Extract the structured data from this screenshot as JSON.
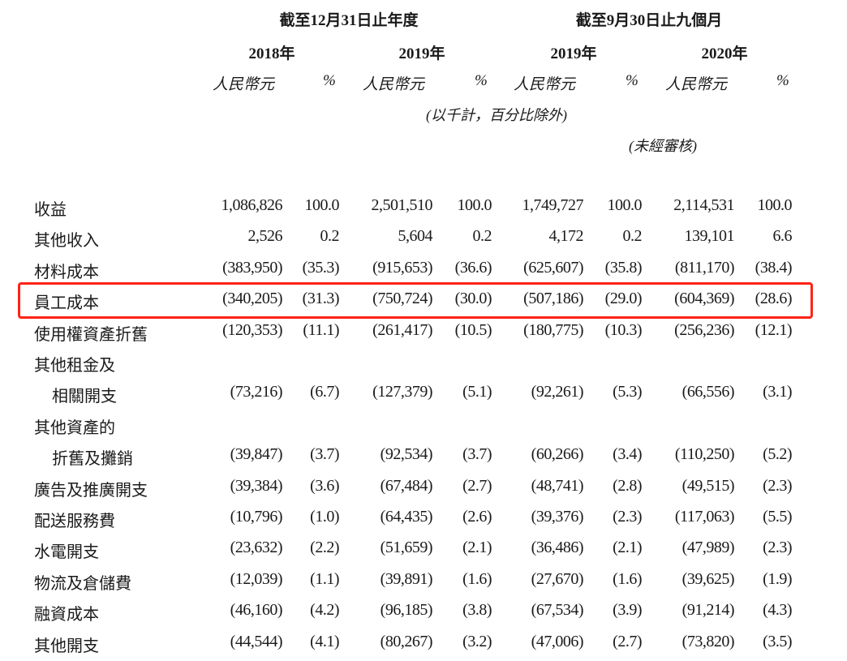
{
  "header": {
    "group1": "截至12月31日止年度",
    "group2": "截至9月30日止九個月",
    "years": [
      "2018年",
      "2019年",
      "2019年",
      "2020年"
    ],
    "currency": "人民幣元",
    "percent": "%",
    "note_units": "(以千計，百分比除外)",
    "note_unaudited": "(未經審核)"
  },
  "highlight_color": "#ff2318",
  "rows": [
    {
      "label": "收益",
      "values": [
        "1,086,826",
        "100.0",
        "2,501,510",
        "100.0",
        "1,749,727",
        "100.0",
        "2,114,531",
        "100.0"
      ]
    },
    {
      "label": "其他收入",
      "values": [
        "2,526",
        "0.2",
        "5,604",
        "0.2",
        "4,172",
        "0.2",
        "139,101",
        "6.6"
      ]
    },
    {
      "label": "材料成本",
      "values": [
        "(383,950)",
        "(35.3)",
        "(915,653)",
        "(36.6)",
        "(625,607)",
        "(35.8)",
        "(811,170)",
        "(38.4)"
      ]
    },
    {
      "label": "員工成本",
      "highlighted": true,
      "values": [
        "(340,205)",
        "(31.3)",
        "(750,724)",
        "(30.0)",
        "(507,186)",
        "(29.0)",
        "(604,369)",
        "(28.6)"
      ]
    },
    {
      "label": "使用權資產折舊",
      "values": [
        "(120,353)",
        "(11.1)",
        "(261,417)",
        "(10.5)",
        "(180,775)",
        "(10.3)",
        "(256,236)",
        "(12.1)"
      ]
    },
    {
      "label": "其他租金及",
      "values": []
    },
    {
      "label": "相關開支",
      "indent": true,
      "values": [
        "(73,216)",
        "(6.7)",
        "(127,379)",
        "(5.1)",
        "(92,261)",
        "(5.3)",
        "(66,556)",
        "(3.1)"
      ]
    },
    {
      "label": "其他資產的",
      "values": []
    },
    {
      "label": "折舊及攤銷",
      "indent": true,
      "values": [
        "(39,847)",
        "(3.7)",
        "(92,534)",
        "(3.7)",
        "(60,266)",
        "(3.4)",
        "(110,250)",
        "(5.2)"
      ]
    },
    {
      "label": "廣告及推廣開支",
      "values": [
        "(39,384)",
        "(3.6)",
        "(67,484)",
        "(2.7)",
        "(48,741)",
        "(2.8)",
        "(49,515)",
        "(2.3)"
      ]
    },
    {
      "label": "配送服務費",
      "values": [
        "(10,796)",
        "(1.0)",
        "(64,435)",
        "(2.6)",
        "(39,376)",
        "(2.3)",
        "(117,063)",
        "(5.5)"
      ]
    },
    {
      "label": "水電開支",
      "values": [
        "(23,632)",
        "(2.2)",
        "(51,659)",
        "(2.1)",
        "(36,486)",
        "(2.1)",
        "(47,989)",
        "(2.3)"
      ]
    },
    {
      "label": "物流及倉儲費",
      "values": [
        "(12,039)",
        "(1.1)",
        "(39,891)",
        "(1.6)",
        "(27,670)",
        "(1.6)",
        "(39,625)",
        "(1.9)"
      ]
    },
    {
      "label": "融資成本",
      "values": [
        "(46,160)",
        "(4.2)",
        "(96,185)",
        "(3.8)",
        "(67,534)",
        "(3.9)",
        "(91,214)",
        "(4.3)"
      ]
    },
    {
      "label": "其他開支",
      "values": [
        "(44,544)",
        "(4.1)",
        "(80,267)",
        "(3.2)",
        "(47,006)",
        "(2.7)",
        "(73,820)",
        "(3.5)"
      ]
    }
  ]
}
